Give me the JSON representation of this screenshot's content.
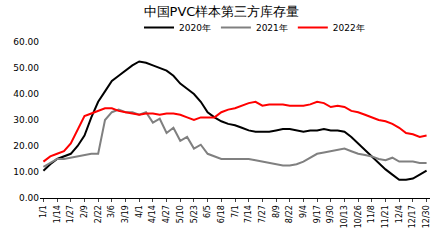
{
  "chart_data": {
    "type": "line",
    "title": "中国PVC样本第三方库存量",
    "categories": [
      "1/1",
      null,
      "1/14",
      null,
      "1/27",
      null,
      "2/9",
      null,
      "2/22",
      null,
      "3/6",
      null,
      "3/19",
      null,
      "4/1",
      null,
      "4/14",
      null,
      "4/27",
      null,
      "5/10",
      null,
      "5/23",
      null,
      "6/5",
      null,
      "6/18",
      null,
      "7/1",
      null,
      "7/14",
      null,
      "7/27",
      null,
      "8/9",
      null,
      "8/22",
      null,
      "9/4",
      null,
      "9/17",
      null,
      "9/30",
      null,
      "10/13",
      null,
      "10/26",
      null,
      "11/8",
      null,
      "11/21",
      null,
      "12/4",
      null,
      "12/17",
      null,
      "12/30"
    ],
    "series": [
      {
        "name": "2020年",
        "color": "#000000",
        "values": [
          10.5,
          13,
          15,
          16,
          17,
          20,
          24,
          31,
          37,
          41,
          45,
          47,
          49,
          51,
          52.5,
          52,
          51,
          50,
          49,
          47,
          44,
          42,
          40,
          37,
          33,
          31,
          29.5,
          28.5,
          28,
          27,
          26,
          25.5,
          25.5,
          25.5,
          26,
          26.5,
          26.5,
          26,
          25.5,
          26,
          26,
          26.5,
          26,
          26,
          25.5,
          23.5,
          21,
          18.5,
          16,
          13.5,
          11,
          9,
          7,
          7,
          7.5,
          9,
          10.5
        ]
      },
      {
        "name": "2021年",
        "color": "#808080",
        "values": [
          12,
          13.5,
          15,
          15,
          15.5,
          16,
          16.5,
          17,
          17,
          30,
          33,
          34,
          33,
          33,
          32,
          33,
          29,
          30.5,
          25,
          27,
          22,
          23.5,
          19,
          20.5,
          17,
          16,
          15,
          15,
          15,
          15,
          15,
          14.5,
          14,
          13.5,
          13,
          12.5,
          12.5,
          13,
          14,
          15.5,
          17,
          17.5,
          18,
          18.5,
          19,
          18,
          17,
          16.5,
          16,
          15,
          14.5,
          15.5,
          14,
          14,
          14,
          13.5,
          13.5
        ]
      },
      {
        "name": "2022年",
        "color": "#ff0000",
        "values": [
          14,
          16,
          17,
          18,
          21,
          26,
          31.5,
          32.5,
          33.5,
          34.5,
          34.5,
          33.5,
          33,
          32.5,
          32,
          32.5,
          32.5,
          32,
          32.5,
          32.5,
          32,
          31,
          30,
          31,
          31,
          31,
          33,
          34,
          34.5,
          35.5,
          36.5,
          37,
          35.5,
          36,
          36,
          36,
          35.5,
          35.5,
          35.5,
          36,
          37,
          36.5,
          35,
          35.5,
          35,
          33.5,
          33,
          32,
          31,
          30,
          29.5,
          28.5,
          27,
          25,
          24.5,
          23.5,
          24
        ]
      }
    ],
    "ylim": [
      0,
      60
    ],
    "yticks": [
      {
        "value": 0,
        "label": "0.00"
      },
      {
        "value": 10,
        "label": "10.00"
      },
      {
        "value": 20,
        "label": "20.00"
      },
      {
        "value": 30,
        "label": "30.00"
      },
      {
        "value": 40,
        "label": "40.00"
      },
      {
        "value": 50,
        "label": "50.00"
      },
      {
        "value": 60,
        "label": "60.00"
      }
    ],
    "grid": false,
    "legend": "top"
  }
}
